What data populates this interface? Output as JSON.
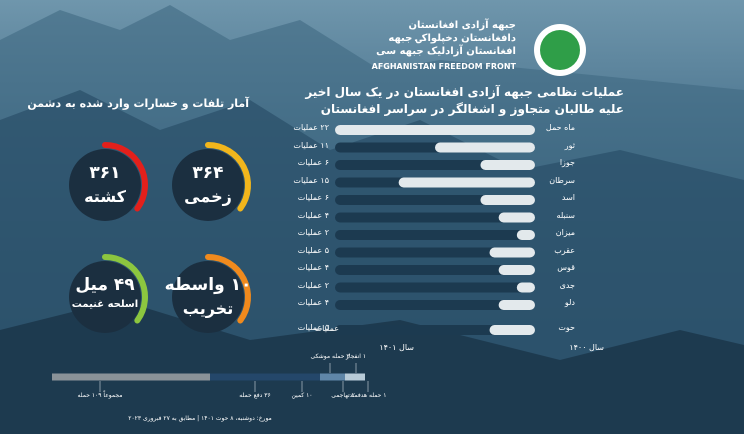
{
  "header": {
    "org_lines": [
      "جبهه آزادی افغانستان",
      "دافغانستان دخپلواکۍ جبهه",
      "افغانستان آزادلیک جبهه سی"
    ],
    "org_english": "AFGHANISTAN FREEDOM FRONT"
  },
  "chart_data": {
    "type": "bar",
    "orientation": "horizontal",
    "title": "عملیات نظامی جبهه آزادی افغانستان در یک سال اخیر",
    "subtitle": "علیه طالبان متجاوز و اشغالگر در سراسر افغانستان",
    "categories": [
      "ماه حمل",
      "ثور",
      "جوزا",
      "سرطان",
      "اسد",
      "سنبله",
      "میزان",
      "عقرب",
      "قوس",
      "جدی",
      "دلو",
      "حوت"
    ],
    "values": [
      22,
      11,
      6,
      15,
      6,
      4,
      2,
      5,
      4,
      2,
      4,
      5
    ],
    "value_labels": [
      "۲۲ عملیات",
      "۱۱ عملیات",
      "۶ عملیات",
      "۱۵ عملیات",
      "۶ عملیات",
      "۴ عملیات",
      "۲ عملیات",
      "۵ عملیات",
      "۴ عملیات",
      "۲ عملیات",
      "۴ عملیات",
      "۵ عملیات"
    ],
    "color": "#e3e9ec",
    "track_color": "#1c3a50",
    "header_label": "عملیات",
    "period_labels": [
      "سال ۱۴۰۱",
      "سال ۱۴۰۰"
    ]
  },
  "stats": {
    "title": "آمار تلفات و خسارات وارد شده به دشمن",
    "items": [
      {
        "number": "۳۶۴",
        "label": "زخمی",
        "color": "#f2b61c"
      },
      {
        "number": "۳۶۱",
        "label": "کشته",
        "color": "#e3201b"
      },
      {
        "number": "۱۰ واسطه",
        "label": "تخریب",
        "color": "#f08a1d"
      },
      {
        "number": "۴۹ میل",
        "label": "اسلحه غنیمت",
        "color": "#8cc63f"
      }
    ]
  },
  "timeline": {
    "items": [
      "مجموعاً ۱۰۹ حمله",
      "۳۶ دفع حمله",
      "۱۰ کمین",
      "۳ حمله موشکی",
      "۱ انفجار",
      "۲ تهاجمی",
      "۱ حمله هدفمند"
    ],
    "date": "مورخ: دوشنبه، ۸ حوت ۱۴۰۱ | مطابق به ۲۷ فبروری ۲۰۲۳"
  }
}
